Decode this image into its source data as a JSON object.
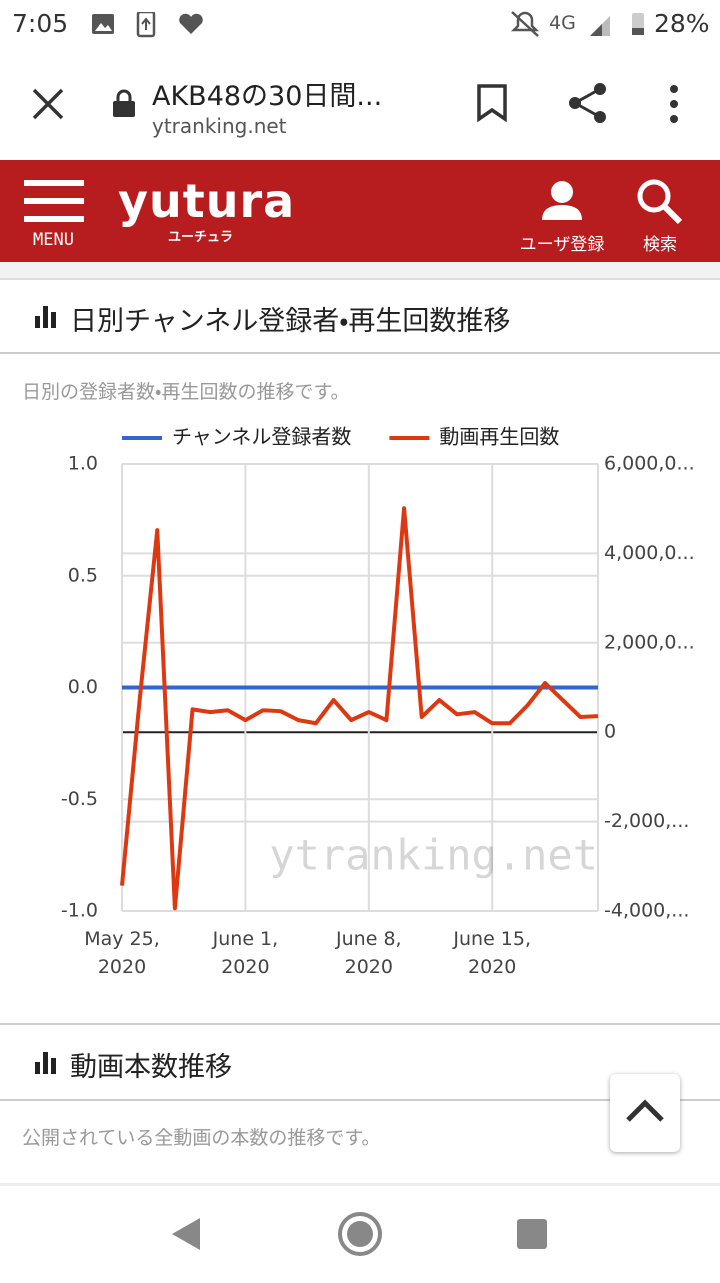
{
  "status_bar": {
    "time": "7:05",
    "network": "4G",
    "battery": "28%"
  },
  "browser": {
    "title": "AKB48の30日間...",
    "url": "ytranking.net"
  },
  "header": {
    "menu": "MENU",
    "logo": "yutura",
    "logo_kana": "ユーチュラ",
    "register": "ユーザ登録",
    "search": "検索"
  },
  "sections": [
    {
      "title": "日別チャンネル登録者・再生回数推移",
      "description": "日別の登録者数・再生回数の推移です。"
    },
    {
      "title": "動画本数推移",
      "description": "公開されている全動画の本数の推移です。"
    }
  ],
  "chart_data": {
    "type": "line",
    "watermark": "ytranking.net",
    "x": [
      "2020-05-25",
      "2020-05-26",
      "2020-05-27",
      "2020-05-28",
      "2020-05-29",
      "2020-05-30",
      "2020-05-31",
      "2020-06-01",
      "2020-06-02",
      "2020-06-03",
      "2020-06-04",
      "2020-06-05",
      "2020-06-06",
      "2020-06-07",
      "2020-06-08",
      "2020-06-09",
      "2020-06-10",
      "2020-06-11",
      "2020-06-12",
      "2020-06-13",
      "2020-06-14",
      "2020-06-15",
      "2020-06-16",
      "2020-06-17",
      "2020-06-18",
      "2020-06-19",
      "2020-06-20",
      "2020-06-21"
    ],
    "xlim": [
      "2020-05-25",
      "2020-06-21"
    ],
    "xticks": [
      {
        "value": "2020-05-25",
        "label": "May 25, 2020"
      },
      {
        "value": "2020-06-01",
        "label": "June 1, 2020"
      },
      {
        "value": "2020-06-08",
        "label": "June 8, 2020"
      },
      {
        "value": "2020-06-15",
        "label": "June 15, 2020"
      }
    ],
    "ylim": [
      -1,
      1
    ],
    "yticks": [
      {
        "value": -1,
        "label": "-1.0"
      },
      -0.5,
      {
        "value": 0,
        "label": "0.0"
      },
      0.5,
      {
        "value": 1,
        "label": "1.0"
      }
    ],
    "y2lim": [
      -4000000,
      6000000
    ],
    "y2ticks": [
      {
        "value": -4000000,
        "label": "-4,000,..."
      },
      {
        "value": -2000000,
        "label": "-2,000,..."
      },
      0,
      {
        "value": 2000000,
        "label": "2,000,0..."
      },
      {
        "value": 4000000,
        "label": "4,000,0..."
      },
      {
        "value": 6000000,
        "label": "6,000,0..."
      }
    ],
    "grid": true,
    "legend": "top",
    "series": [
      {
        "name": "チャンネル登録者数",
        "color": "#3366cc",
        "values": [
          0,
          0,
          0,
          0,
          0,
          0,
          0,
          0,
          0,
          0,
          0,
          0,
          0,
          0,
          0,
          0,
          0,
          0,
          0,
          0,
          0,
          0,
          0,
          0,
          0,
          0,
          0,
          0
        ]
      },
      {
        "name": "動画再生回数",
        "color": "#dc3912",
        "axis": "y2",
        "values": [
          -3430000,
          720000,
          4520000,
          -3940000,
          510000,
          450000,
          490000,
          270000,
          490000,
          470000,
          270000,
          200000,
          720000,
          270000,
          450000,
          270000,
          5010000,
          340000,
          720000,
          400000,
          450000,
          200000,
          200000,
          600000,
          1100000,
          720000,
          340000,
          360000
        ]
      }
    ]
  }
}
